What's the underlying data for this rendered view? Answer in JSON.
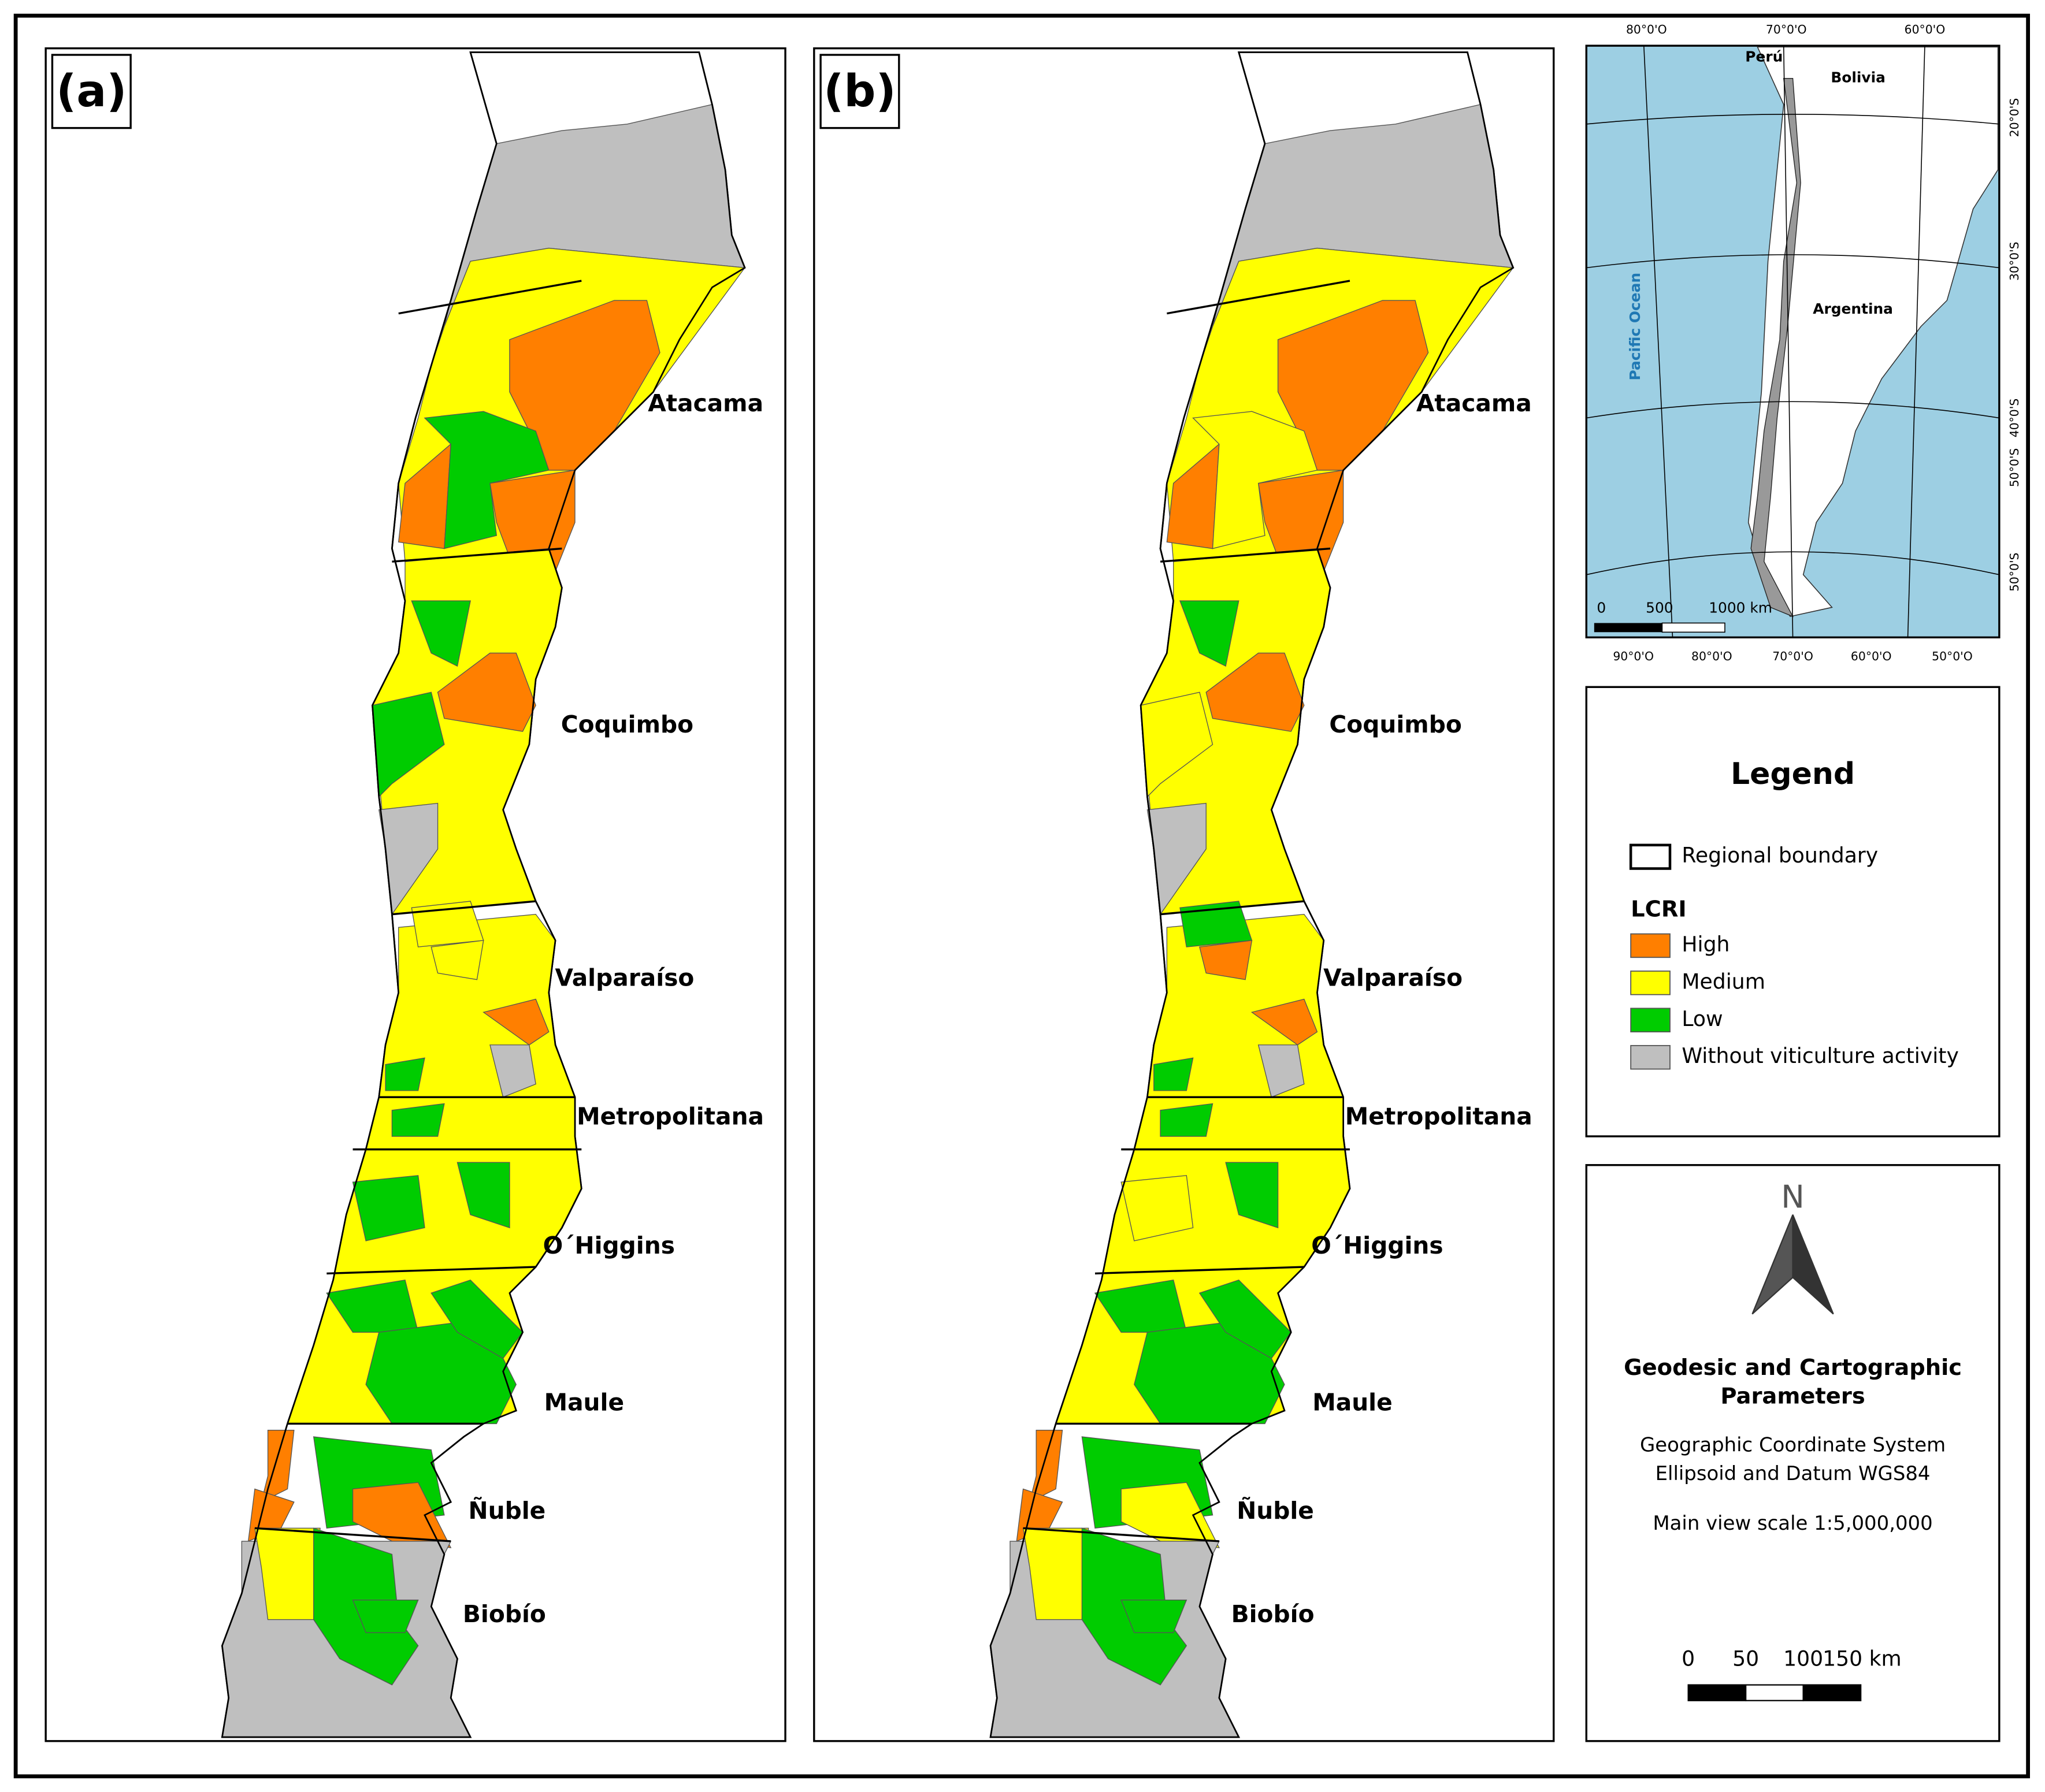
{
  "panels": [
    {
      "label": "(a)",
      "regions": [
        "Atacama",
        "Coquimbo",
        "Valparaíso",
        "Metropolitana",
        "O´Higgins",
        "Maule",
        "Ñuble",
        "Biobío"
      ]
    },
    {
      "label": "(b)",
      "regions": [
        "Atacama",
        "Coquimbo",
        "Valparaíso",
        "Metropolitana",
        "O´Higgins",
        "Maule",
        "Ñuble",
        "Biobío"
      ]
    }
  ],
  "inset": {
    "countries": [
      "Perú",
      "Bolivia",
      "Argentina"
    ],
    "ocean": "Pacific Ocean",
    "top_ticks": [
      "80°0'O",
      "70°0'O",
      "60°0'O"
    ],
    "bottom_ticks": [
      "90°0'O",
      "80°0'O",
      "70°0'O",
      "60°0'O",
      "50°0'O"
    ],
    "right_ticks": [
      "20°0'S",
      "30°0'S",
      "40°0'S",
      "50°0'S",
      "50°0'S"
    ],
    "scale": [
      "0",
      "500",
      "1000 km"
    ]
  },
  "legend": {
    "title": "Legend",
    "boundary": "Regional boundary",
    "group": "LCRI",
    "classes": [
      {
        "label": "High",
        "color": "#ff7f00"
      },
      {
        "label": "Medium",
        "color": "#ffff00"
      },
      {
        "label": "Low",
        "color": "#00cc00"
      },
      {
        "label": "Without viticulture activity",
        "color": "#bfbfbf"
      }
    ]
  },
  "parameters": {
    "north": "N",
    "title_lines": [
      "Geodesic and Cartographic",
      "Parameters"
    ],
    "lines": [
      "Geographic Coordinate System",
      "Ellipsoid and Datum WGS84",
      "Main view scale 1:5,000,000"
    ],
    "scale": [
      "0",
      "50",
      "100",
      "150 km"
    ]
  }
}
